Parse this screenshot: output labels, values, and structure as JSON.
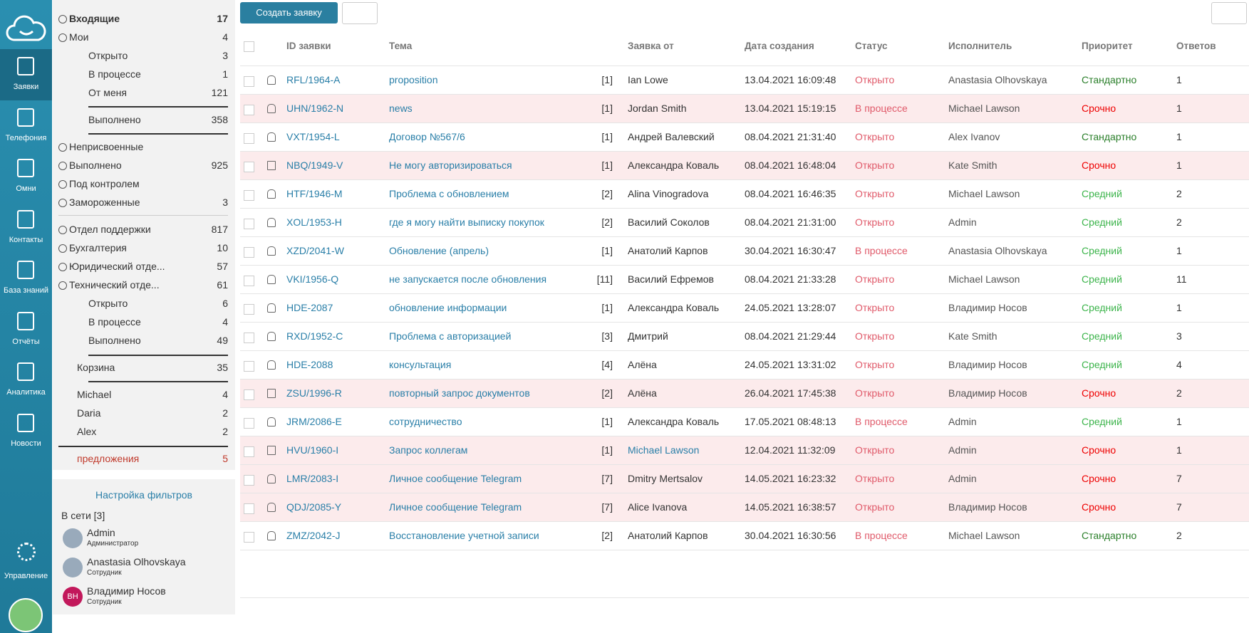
{
  "nav": {
    "items": [
      "Заявки",
      "Телефония",
      "Омни",
      "Контакты",
      "База знаний",
      "Отчёты",
      "Аналитика",
      "Новости"
    ],
    "settings": "Управление"
  },
  "filters": [
    {
      "label": "Входящие",
      "count": 17
    },
    {
      "label": "Мои",
      "count": 4
    },
    {
      "label": "Открыто",
      "count": 3
    },
    {
      "label": "В процессе",
      "count": 1
    },
    {
      "label": "От меня",
      "count": 121
    },
    {
      "label": "Выполнено",
      "count": 358
    },
    {
      "label": "Неприсвоенные"
    },
    {
      "label": "Выполнено",
      "count": 925
    },
    {
      "label": "Под контролем"
    },
    {
      "label": "Замороженные",
      "count": 3
    },
    {
      "label": "Отдел поддержки",
      "count": 817
    },
    {
      "label": "Бухгалтерия",
      "count": 10
    },
    {
      "label": "Юридический отде...",
      "count": 57
    },
    {
      "label": "Технический отде...",
      "count": 61
    },
    {
      "label": "Открыто",
      "count": 6
    },
    {
      "label": "В процессе",
      "count": 4
    },
    {
      "label": "Выполнено",
      "count": 49
    },
    {
      "label": "Корзина",
      "count": 35
    },
    {
      "label": "Michael",
      "count": 4
    },
    {
      "label": "Daria",
      "count": 2
    },
    {
      "label": "Alex",
      "count": 2
    },
    {
      "label": "предложения",
      "count": 5
    }
  ],
  "online": {
    "filter_settings": "Настройка фильтров",
    "title": "В сети [3]",
    "users": [
      {
        "name": "Admin",
        "role": "Администратор"
      },
      {
        "name": "Anastasia Olhovskaya",
        "role": "Сотрудник"
      },
      {
        "name": "Владимир Носов",
        "role": "Сотрудник",
        "initials": "ВН"
      }
    ]
  },
  "toolbar": {
    "create": "Создать заявку"
  },
  "table": {
    "headers": [
      "ID заявки",
      "Тема",
      "Заявка от",
      "Дата создания",
      "Статус",
      "Исполнитель",
      "Приоритет",
      "Ответов"
    ],
    "rows": [
      [
        "RFL/1964-A",
        "proposition",
        "[1]",
        "Ian Lowe",
        "13.04.2021 16:09:48",
        "Открыто",
        "Anastasia Olhovskaya",
        "Стандартно",
        1
      ],
      [
        "UHN/1962-N",
        "news",
        "[1]",
        "Jordan Smith",
        "13.04.2021 15:19:15",
        "В процессе",
        "Michael Lawson",
        "Срочно",
        1
      ],
      [
        "VXT/1954-L",
        "Договор №567/6",
        "[1]",
        "Андрей Валевский",
        "08.04.2021 21:31:40",
        "Открыто",
        "Alex Ivanov",
        "Стандартно",
        1
      ],
      [
        "NBQ/1949-V",
        "Не могу авторизироваться",
        "[1]",
        "Александра Коваль",
        "08.04.2021 16:48:04",
        "Открыто",
        "Kate Smith",
        "Срочно",
        1
      ],
      [
        "HTF/1946-M",
        "Проблема с обновлением",
        "[2]",
        "Alina Vinogradova",
        "08.04.2021 16:46:35",
        "Открыто",
        "Michael Lawson",
        "Средний",
        2
      ],
      [
        "XOL/1953-H",
        "где я могу найти выписку покупок",
        "[2]",
        "Василий Соколов",
        "08.04.2021 21:31:00",
        "Открыто",
        "Admin",
        "Средний",
        2
      ],
      [
        "XZD/2041-W",
        "Обновление (апрель)",
        "[1]",
        "Анатолий Карпов",
        "30.04.2021 16:30:47",
        "В процессе",
        "Anastasia Olhovskaya",
        "Средний",
        1
      ],
      [
        "VKI/1956-Q",
        "не запускается после обновления",
        "[11]",
        "Василий Ефремов",
        "08.04.2021 21:33:28",
        "Открыто",
        "Michael Lawson",
        "Средний",
        11
      ],
      [
        "HDE-2087",
        "обновление информации",
        "[1]",
        "Александра Коваль",
        "24.05.2021 13:28:07",
        "Открыто",
        "Владимир Носов",
        "Средний",
        1
      ],
      [
        "RXD/1952-C",
        "Проблема с авторизацией",
        "[3]",
        "Дмитрий",
        "08.04.2021 21:29:44",
        "Открыто",
        "Kate Smith",
        "Средний",
        3
      ],
      [
        "HDE-2088",
        "консультация",
        "[4]",
        "Алёна",
        "24.05.2021 13:31:02",
        "Открыто",
        "Владимир Носов",
        "Средний",
        4
      ],
      [
        "ZSU/1996-R",
        "повторный запрос документов",
        "[2]",
        "Алёна",
        "26.04.2021 17:45:38",
        "Открыто",
        "Владимир Носов",
        "Срочно",
        2
      ],
      [
        "JRM/2086-E",
        "сотрудничество",
        "[1]",
        "Александра Коваль",
        "17.05.2021 08:48:13",
        "В процессе",
        "Admin",
        "Средний",
        1
      ],
      [
        "HVU/1960-I",
        "Запрос коллегам",
        "[1]",
        "Michael Lawson",
        "12.04.2021 11:32:09",
        "Открыто",
        "Admin",
        "Срочно",
        1
      ],
      [
        "LMR/2083-I",
        "Личное сообщение Telegram",
        "[7]",
        "Dmitry Mertsalov",
        "14.05.2021 16:23:32",
        "Открыто",
        "Admin",
        "Срочно",
        7
      ],
      [
        "QDJ/2085-Y",
        "Личное сообщение Telegram",
        "[7]",
        "Alice Ivanova",
        "14.05.2021 16:38:57",
        "Открыто",
        "Владимир Носов",
        "Срочно",
        7
      ],
      [
        "ZMZ/2042-J",
        "Восстановление учетной записи",
        "[2]",
        "Анатолий Карпов",
        "30.04.2021 16:30:56",
        "В процессе",
        "Michael Lawson",
        "Стандартно",
        2
      ]
    ]
  }
}
